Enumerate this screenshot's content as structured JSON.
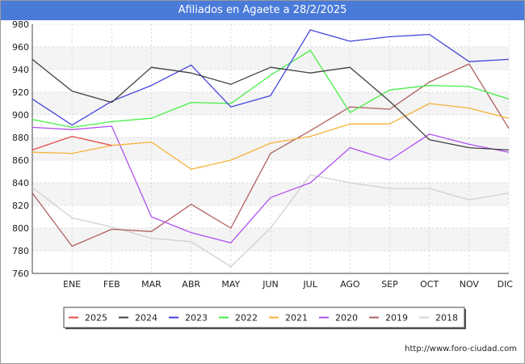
{
  "chart_data": {
    "type": "line",
    "title": "Afiliados en Agaete a 28/2/2025",
    "categories": [
      "",
      "ENE",
      "FEB",
      "MAR",
      "ABR",
      "MAY",
      "JUN",
      "JUL",
      "AGO",
      "SEP",
      "OCT",
      "NOV",
      "DIC"
    ],
    "ylim": [
      760,
      980
    ],
    "yticks": [
      760,
      780,
      800,
      820,
      840,
      860,
      880,
      900,
      920,
      940,
      960,
      980
    ],
    "grid": true,
    "legend_position": "bottom",
    "series": [
      {
        "name": "2025",
        "color": "#e84a4a",
        "values": [
          869,
          881,
          873,
          null,
          null,
          null,
          null,
          null,
          null,
          null,
          null,
          null,
          null
        ]
      },
      {
        "name": "2024",
        "color": "#404040",
        "values": [
          949,
          921,
          911,
          942,
          937,
          927,
          942,
          937,
          942,
          912,
          878,
          871,
          869
        ]
      },
      {
        "name": "2023",
        "color": "#4444dd",
        "values": [
          914,
          891,
          912,
          926,
          944,
          907,
          917,
          975,
          965,
          969,
          971,
          947,
          949
        ]
      },
      {
        "name": "2022",
        "color": "#44ee44",
        "values": [
          896,
          889,
          894,
          897,
          911,
          910,
          935,
          957,
          902,
          922,
          926,
          925,
          914
        ]
      },
      {
        "name": "2021",
        "color": "#f5b23a",
        "values": [
          867,
          866,
          873,
          876,
          852,
          860,
          875,
          881,
          892,
          892,
          910,
          906,
          897
        ]
      },
      {
        "name": "2020",
        "color": "#b050f0",
        "values": [
          889,
          887,
          890,
          810,
          796,
          787,
          827,
          840,
          871,
          860,
          883,
          874,
          867
        ]
      },
      {
        "name": "2019",
        "color": "#b06060",
        "values": [
          831,
          784,
          799,
          797,
          821,
          800,
          866,
          886,
          907,
          905,
          929,
          945,
          888
        ]
      },
      {
        "name": "2018",
        "color": "#d0d0d0",
        "values": [
          836,
          809,
          801,
          791,
          788,
          766,
          800,
          847,
          840,
          835,
          835,
          825,
          831
        ]
      }
    ]
  },
  "footer": {
    "url": "http://www.foro-ciudad.com"
  }
}
